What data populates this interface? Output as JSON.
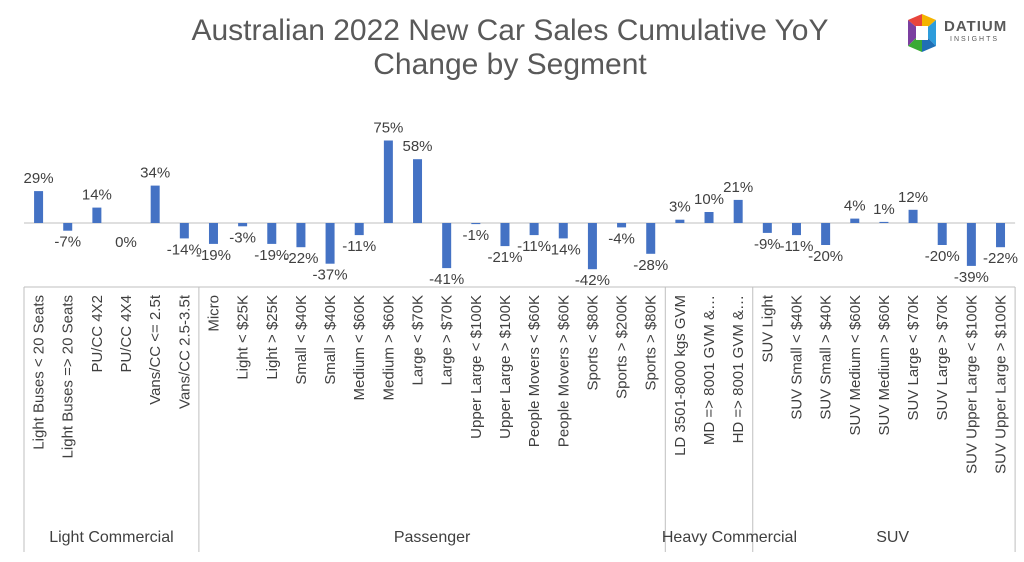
{
  "title_line1": "Australian 2022 New Car Sales Cumulative YoY",
  "title_line2": "Change by Segment",
  "logo": {
    "name": "DATIUM",
    "tagline": "INSIGHTS"
  },
  "colors": {
    "bar": "#4472C4",
    "axis": "#BFBFBF",
    "text": "#404040",
    "title": "#595959"
  },
  "chart_data": {
    "type": "bar",
    "title": "Australian 2022 New Car Sales Cumulative YoY Change by Segment",
    "xlabel": "",
    "ylabel": "",
    "ylim": [
      -42,
      75
    ],
    "grid": false,
    "legend": "none",
    "value_format": "percent",
    "groups": [
      {
        "name": "Light Commercial",
        "count": 6
      },
      {
        "name": "Passenger",
        "count": 16
      },
      {
        "name": "Heavy Commercial",
        "count": 3
      },
      {
        "name": "SUV",
        "count": 9
      }
    ],
    "categories": [
      "Light Buses < 20 Seats",
      "Light Buses => 20 Seats",
      "PU/CC 4X2",
      "PU/CC 4X4",
      "Vans/CC <= 2.5t",
      "Vans/CC 2.5-3.5t",
      "Micro",
      "Light < $25K",
      "Light > $25K",
      "Small < $40K",
      "Small > $40K",
      "Medium < $60K",
      "Medium > $60K",
      "Large < $70K",
      "Large > $70K",
      "Upper Large < $100K",
      "Upper Large > $100K",
      "People Movers < $60K",
      "People Movers > $60K",
      "Sports < $80K",
      "Sports > $200K",
      "Sports > $80K",
      "LD 3501-8000 kgs GVM",
      "MD => 8001 GVM &…",
      "HD => 8001 GVM &…",
      "SUV Light",
      "SUV Small < $40K",
      "SUV Small > $40K",
      "SUV Medium < $60K",
      "SUV Medium > $60K",
      "SUV Large < $70K",
      "SUV Large > $70K",
      "SUV Upper Large < $100K",
      "SUV Upper Large > $100K"
    ],
    "values": [
      29,
      -7,
      14,
      0,
      34,
      -14,
      -19,
      -3,
      -19,
      -22,
      -37,
      -11,
      75,
      58,
      -41,
      -1,
      -21,
      -11,
      -14,
      -42,
      -4,
      -28,
      3,
      10,
      21,
      -9,
      -11,
      -20,
      4,
      1,
      12,
      -20,
      -39,
      -22
    ],
    "labels": [
      "29%",
      "-7%",
      "14%",
      "0%",
      "34%",
      "-14%",
      "-19%",
      "-3%",
      "-19%",
      "-22%",
      "-37%",
      "-11%",
      "75%",
      "58%",
      "-41%",
      "-1%",
      "-21%",
      "-11%",
      "-14%",
      "-42%",
      "-4%",
      "-28%",
      "3%",
      "10%",
      "21%",
      "-9%",
      "-11%",
      "-20%",
      "4%",
      "1%",
      "12%",
      "-20%",
      "-39%",
      "-22%"
    ]
  }
}
